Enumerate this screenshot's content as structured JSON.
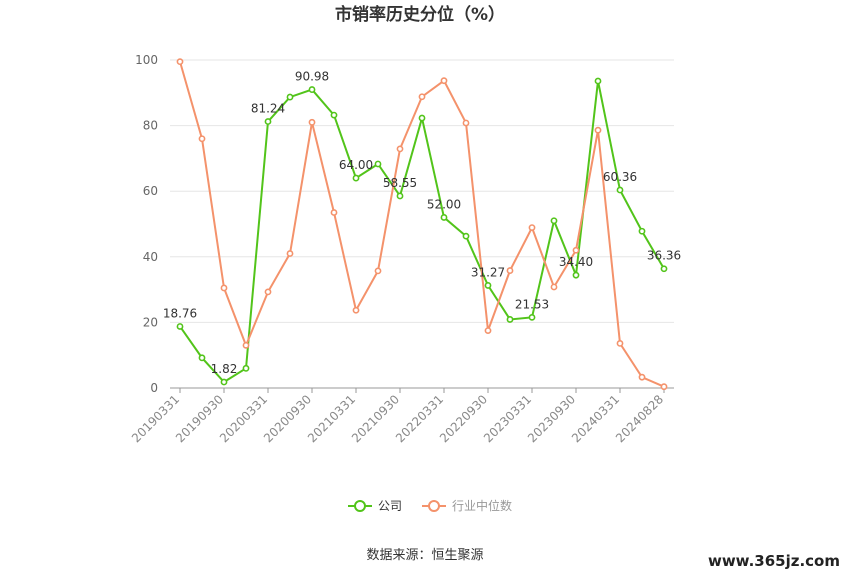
{
  "chart_data": {
    "type": "line",
    "title": "市销率历史分位（%）",
    "x": [
      "20190331",
      "20190630",
      "20190930",
      "20191231",
      "20200331",
      "20200630",
      "20200930",
      "20201231",
      "20210331",
      "20210630",
      "20210930",
      "20211231",
      "20220331",
      "20220630",
      "20220930",
      "20221231",
      "20230331",
      "20230630",
      "20230930",
      "20231231",
      "20240331",
      "20240630",
      "20240828"
    ],
    "x_tick_labels": [
      "20190331",
      "20190930",
      "20200331",
      "20200930",
      "20210331",
      "20210930",
      "20220331",
      "20220930",
      "20230331",
      "20230930",
      "20240331",
      "20240828"
    ],
    "ylim": [
      0,
      100
    ],
    "y_ticks": [
      0,
      20,
      40,
      60,
      80,
      100
    ],
    "grid": true,
    "legend_position": "bottom-center",
    "series": [
      {
        "name": "公司",
        "color": "#52c41a",
        "values": [
          18.76,
          9.2,
          1.82,
          6.0,
          81.24,
          88.7,
          90.98,
          83.2,
          64.0,
          68.3,
          58.55,
          82.3,
          52.0,
          46.3,
          31.27,
          20.9,
          21.53,
          51.0,
          34.4,
          93.6,
          60.36,
          47.8,
          36.36
        ],
        "labels": {
          "0": "18.76",
          "2": "1.82",
          "4": "81.24",
          "6": "90.98",
          "8": "64.00",
          "10": "58.55",
          "12": "52.00",
          "14": "31.27",
          "16": "21.53",
          "18": "34.40",
          "20": "60.36",
          "22": "36.36"
        }
      },
      {
        "name": "行业中位数",
        "color": "#f4926b",
        "values": [
          99.5,
          76.0,
          30.5,
          13.0,
          29.3,
          41.0,
          81.0,
          53.5,
          23.7,
          35.7,
          72.9,
          88.8,
          93.7,
          80.8,
          17.5,
          35.8,
          48.9,
          30.8,
          42.0,
          78.6,
          13.6,
          3.3,
          0.4
        ]
      }
    ]
  },
  "footer": {
    "source": "数据来源：恒生聚源",
    "watermark": "www.365jz.com"
  }
}
